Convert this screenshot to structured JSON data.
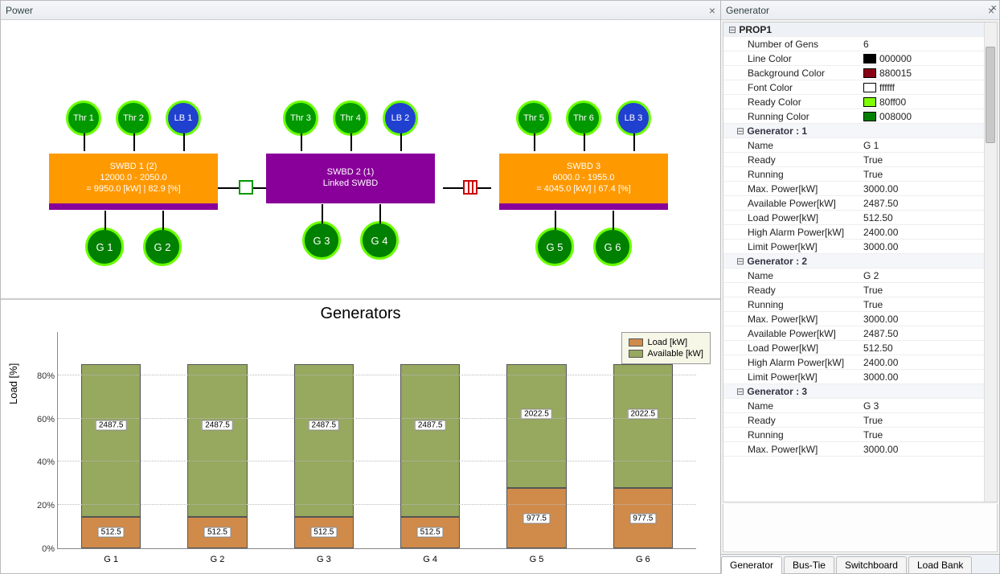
{
  "left_panel_title": "Power",
  "right_panel_title": "Generator",
  "swbds": [
    {
      "title": "SWBD 1 (2)",
      "line2": "12000.0 - 2050.0",
      "line3": "= 9950.0 [kW] | 82.9 [%]",
      "style": "orange",
      "top": [
        {
          "t": "thr",
          "l": "Thr 1"
        },
        {
          "t": "thr",
          "l": "Thr 2"
        },
        {
          "t": "lb",
          "l": "LB 1"
        }
      ],
      "gens": [
        "G 1",
        "G 2"
      ]
    },
    {
      "title": "SWBD 2 (1)",
      "line2": "Linked SWBD",
      "line3": "",
      "style": "purple",
      "top": [
        {
          "t": "thr",
          "l": "Thr 3"
        },
        {
          "t": "thr",
          "l": "Thr 4"
        },
        {
          "t": "lb",
          "l": "LB 2"
        }
      ],
      "gens": [
        "G 3",
        "G 4"
      ]
    },
    {
      "title": "SWBD 3",
      "line2": "6000.0 - 1955.0",
      "line3": "= 4045.0 [kW] | 67.4 [%]",
      "style": "orange",
      "top": [
        {
          "t": "thr",
          "l": "Thr 5"
        },
        {
          "t": "thr",
          "l": "Thr 6"
        },
        {
          "t": "lb",
          "l": "LB 3"
        }
      ],
      "gens": [
        "G 5",
        "G 6"
      ]
    }
  ],
  "chart": {
    "title": "Generators",
    "ylabel": "Load [%]",
    "yticks": [
      0,
      20,
      40,
      60,
      80
    ],
    "ymax": 100,
    "legend": {
      "load": "Load [kW]",
      "avail": "Available [kW]"
    },
    "colors": {
      "load": "#d08b4a",
      "avail": "#97a85f",
      "grid": "#bbbbbb"
    },
    "bars": [
      {
        "name": "G 1",
        "load": 512.5,
        "avail": 2487.5,
        "max": 3000
      },
      {
        "name": "G 2",
        "load": 512.5,
        "avail": 2487.5,
        "max": 3000
      },
      {
        "name": "G 3",
        "load": 512.5,
        "avail": 2487.5,
        "max": 3000
      },
      {
        "name": "G 4",
        "load": 512.5,
        "avail": 2487.5,
        "max": 3000
      },
      {
        "name": "G 5",
        "load": 977.5,
        "avail": 2022.5,
        "max": 3000
      },
      {
        "name": "G 6",
        "load": 977.5,
        "avail": 2022.5,
        "max": 3000
      }
    ]
  },
  "propgrid": {
    "root": "PROP1",
    "props": [
      {
        "k": "Number of Gens",
        "v": "6"
      },
      {
        "k": "Line Color",
        "v": "000000",
        "color": "#000000"
      },
      {
        "k": "Background Color",
        "v": "880015",
        "color": "#880015"
      },
      {
        "k": "Font Color",
        "v": "ffffff",
        "color": "#ffffff"
      },
      {
        "k": "Ready Color",
        "v": "80ff00",
        "color": "#80ff00"
      },
      {
        "k": "Running Color",
        "v": "008000",
        "color": "#008000"
      }
    ],
    "gens": [
      {
        "title": "Generator : 1",
        "rows": [
          [
            "Name",
            "G 1"
          ],
          [
            "Ready",
            "True"
          ],
          [
            "Running",
            "True"
          ],
          [
            "Max. Power[kW]",
            "3000.00"
          ],
          [
            "Available Power[kW]",
            "2487.50"
          ],
          [
            "Load Power[kW]",
            "512.50"
          ],
          [
            "High Alarm Power[kW]",
            "2400.00"
          ],
          [
            "Limit Power[kW]",
            "3000.00"
          ]
        ]
      },
      {
        "title": "Generator : 2",
        "rows": [
          [
            "Name",
            "G 2"
          ],
          [
            "Ready",
            "True"
          ],
          [
            "Running",
            "True"
          ],
          [
            "Max. Power[kW]",
            "3000.00"
          ],
          [
            "Available Power[kW]",
            "2487.50"
          ],
          [
            "Load Power[kW]",
            "512.50"
          ],
          [
            "High Alarm Power[kW]",
            "2400.00"
          ],
          [
            "Limit Power[kW]",
            "3000.00"
          ]
        ]
      },
      {
        "title": "Generator : 3",
        "rows": [
          [
            "Name",
            "G 3"
          ],
          [
            "Ready",
            "True"
          ],
          [
            "Running",
            "True"
          ],
          [
            "Max. Power[kW]",
            "3000.00"
          ]
        ]
      }
    ]
  },
  "tabs": [
    "Generator",
    "Bus-Tie",
    "Switchboard",
    "Load Bank"
  ],
  "active_tab": 0
}
